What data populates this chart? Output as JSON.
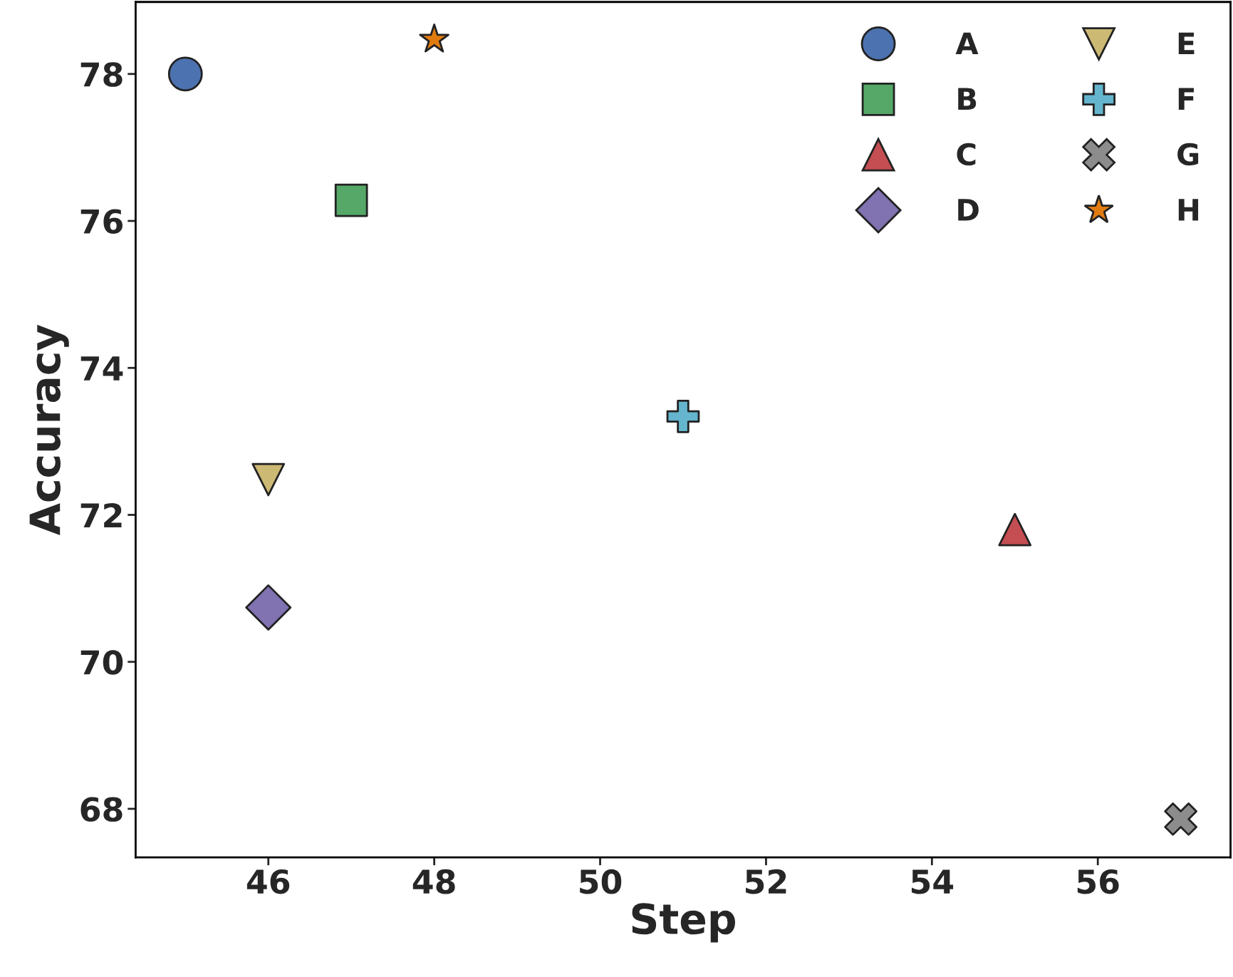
{
  "chart_data": {
    "type": "scatter",
    "xlabel": "Step",
    "ylabel": "Accuracy",
    "xlim": [
      44.4,
      57.6
    ],
    "xticks": [
      46,
      48,
      50,
      52,
      54,
      56
    ],
    "ylim": [
      67.34,
      78.98
    ],
    "yticks": [
      68,
      70,
      72,
      74,
      76,
      78
    ],
    "grid": false,
    "legend": "top right",
    "series": [
      {
        "name": "A",
        "color": "#4c72b0",
        "marker": "circle",
        "x": [
          45
        ],
        "values": [
          78.0
        ]
      },
      {
        "name": "B",
        "color": "#55a868",
        "marker": "square",
        "x": [
          47
        ],
        "values": [
          76.28
        ]
      },
      {
        "name": "C",
        "color": "#c44e52",
        "marker": "triangle",
        "x": [
          55
        ],
        "values": [
          71.8
        ]
      },
      {
        "name": "D",
        "color": "#8172b2",
        "marker": "diamond",
        "x": [
          46
        ],
        "values": [
          70.74
        ]
      },
      {
        "name": "E",
        "color": "#ccb974",
        "marker": "triangle_down",
        "x": [
          46
        ],
        "values": [
          72.48
        ]
      },
      {
        "name": "F",
        "color": "#64b5cd",
        "marker": "plus",
        "x": [
          51
        ],
        "values": [
          73.34
        ]
      },
      {
        "name": "G",
        "color": "#8c8c8c",
        "marker": "cross",
        "x": [
          57
        ],
        "values": [
          67.86
        ]
      },
      {
        "name": "H",
        "color": "#e07b10",
        "marker": "star",
        "x": [
          48
        ],
        "values": [
          78.47
        ]
      }
    ]
  }
}
